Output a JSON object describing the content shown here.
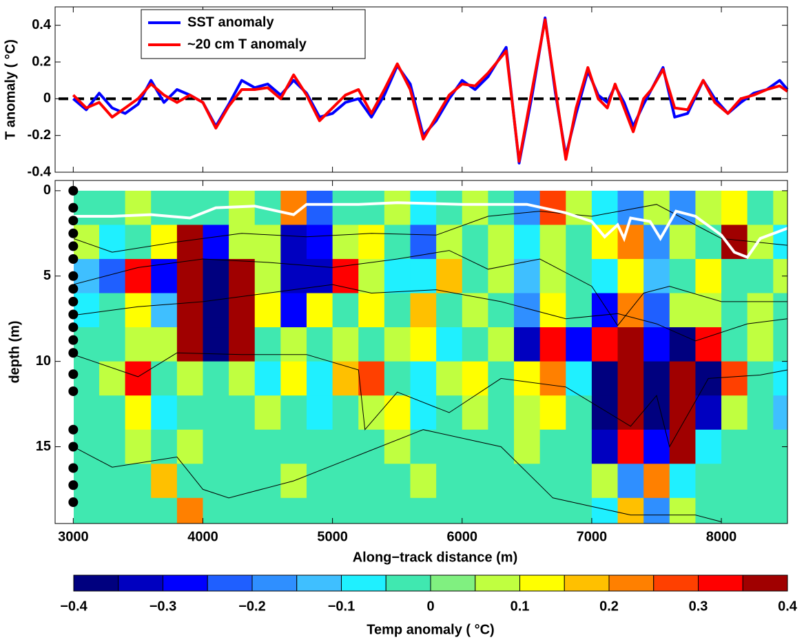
{
  "chart_data": [
    {
      "type": "line",
      "ylabel": "T anomaly ( °C)",
      "x": [
        3000,
        3100,
        3200,
        3300,
        3400,
        3500,
        3600,
        3700,
        3800,
        3900,
        4000,
        4100,
        4200,
        4300,
        4400,
        4500,
        4600,
        4700,
        4800,
        4900,
        5000,
        5100,
        5200,
        5300,
        5400,
        5500,
        5600,
        5700,
        5800,
        5900,
        6000,
        6100,
        6200,
        6340,
        6440,
        6540,
        6640,
        6720,
        6800,
        6880,
        6970,
        7050,
        7120,
        7180,
        7250,
        7320,
        7400,
        7460,
        7550,
        7640,
        7740,
        7860,
        7950,
        8050,
        8150,
        8250,
        8350,
        8450,
        8510
      ],
      "series": [
        {
          "name": "SST anomaly",
          "color": "#0000ff",
          "values": [
            0.0,
            -0.06,
            0.03,
            -0.05,
            -0.08,
            -0.03,
            0.1,
            -0.02,
            0.05,
            0.02,
            -0.02,
            -0.15,
            -0.03,
            0.1,
            0.06,
            0.08,
            0.02,
            0.1,
            0.03,
            -0.1,
            -0.08,
            -0.02,
            0.0,
            -0.1,
            0.02,
            0.18,
            0.08,
            -0.2,
            -0.12,
            0.0,
            0.1,
            0.05,
            0.12,
            0.28,
            -0.35,
            0.02,
            0.44,
            0.03,
            -0.31,
            -0.08,
            0.15,
            0.02,
            -0.02,
            0.07,
            -0.02,
            -0.15,
            -0.03,
            0.05,
            0.17,
            -0.1,
            -0.08,
            0.1,
            0.0,
            -0.08,
            -0.02,
            0.03,
            0.05,
            0.1,
            0.05
          ]
        },
        {
          "name": "~20 cm T anomaly",
          "color": "#ff0000",
          "values": [
            0.02,
            -0.05,
            -0.02,
            -0.1,
            -0.05,
            0.0,
            0.08,
            0.02,
            -0.02,
            0.02,
            -0.02,
            -0.16,
            -0.04,
            0.05,
            0.05,
            0.06,
            0.0,
            0.13,
            0.02,
            -0.12,
            -0.05,
            0.02,
            0.05,
            -0.08,
            0.05,
            0.19,
            0.05,
            -0.22,
            -0.1,
            0.02,
            0.08,
            0.07,
            0.14,
            0.26,
            -0.34,
            0.05,
            0.43,
            0.05,
            -0.33,
            -0.05,
            0.17,
            0.0,
            -0.05,
            0.08,
            -0.05,
            -0.18,
            0.0,
            0.05,
            0.16,
            -0.05,
            -0.06,
            0.1,
            -0.02,
            -0.08,
            0.0,
            0.02,
            0.05,
            0.07,
            0.04
          ]
        }
      ],
      "hline": 0,
      "xlim": [
        2860,
        8510
      ],
      "xticks": [
        3000,
        4000,
        5000,
        6000,
        7000,
        8000
      ],
      "ylim": [
        -0.4,
        0.5
      ],
      "yticks": [
        -0.4,
        -0.2,
        0,
        0.2,
        0.4
      ]
    },
    {
      "type": "heatmap",
      "xlabel": "Along−track distance (m)",
      "ylabel": "depth (m)",
      "x": [
        3100,
        3300,
        3500,
        3700,
        3900,
        4100,
        4300,
        4500,
        4700,
        4900,
        5100,
        5300,
        5500,
        5700,
        5900,
        6100,
        6300,
        6500,
        6700,
        6900,
        7100,
        7300,
        7500,
        7700,
        7900,
        8100,
        8300,
        8500
      ],
      "depths": [
        1,
        3,
        5,
        7,
        9,
        11,
        13,
        15,
        17,
        19
      ],
      "values": [
        [
          -0.02,
          -0.02,
          0.05,
          -0.02,
          -0.05,
          -0.02,
          0.05,
          -0.02,
          0.2,
          -0.25,
          -0.05,
          -0.02,
          0.05,
          -0.1,
          -0.02,
          0.05,
          -0.02,
          -0.2,
          0.25,
          0.05,
          -0.1,
          -0.2,
          0.05,
          -0.2,
          0.05,
          0.1,
          -0.02,
          0.05
        ],
        [
          0.05,
          -0.1,
          -0.02,
          0.1,
          0.35,
          -0.3,
          0.05,
          0.05,
          -0.35,
          -0.3,
          0.05,
          0.1,
          -0.02,
          -0.25,
          0.05,
          -0.02,
          0.05,
          -0.1,
          0.05,
          -0.05,
          0.1,
          0.2,
          -0.2,
          0.05,
          -0.05,
          0.35,
          0.05,
          -0.1
        ],
        [
          -0.15,
          -0.25,
          0.3,
          -0.3,
          0.4,
          -0.4,
          0.4,
          0.05,
          -0.35,
          -0.35,
          0.3,
          0.05,
          -0.1,
          -0.1,
          0.15,
          -0.05,
          0.05,
          -0.15,
          0.05,
          -0.02,
          -0.1,
          0.1,
          -0.15,
          -0.02,
          0.1,
          -0.05,
          -0.02,
          0.05
        ],
        [
          -0.1,
          -0.05,
          0.1,
          -0.15,
          0.4,
          -0.4,
          0.4,
          0.1,
          -0.3,
          0.1,
          -0.02,
          0.1,
          -0.05,
          0.15,
          -0.02,
          0.05,
          -0.02,
          -0.2,
          0.1,
          -0.02,
          -0.3,
          0.2,
          -0.25,
          0.05,
          0.05,
          -0.05,
          0.05,
          -0.02
        ],
        [
          -0.02,
          -0.05,
          0.05,
          0.05,
          0.4,
          -0.4,
          0.35,
          -0.05,
          0.05,
          -0.05,
          0.05,
          -0.02,
          0.05,
          0.1,
          -0.1,
          -0.02,
          0.05,
          -0.35,
          0.3,
          -0.3,
          0.3,
          0.4,
          -0.3,
          -0.4,
          0.3,
          -0.05,
          0.05,
          -0.02
        ],
        [
          -0.05,
          0.05,
          0.3,
          -0.02,
          0.05,
          -0.05,
          0.05,
          -0.1,
          0.1,
          -0.1,
          0.15,
          0.25,
          -0.05,
          -0.1,
          0.05,
          0.1,
          -0.02,
          0.1,
          0.2,
          -0.1,
          -0.4,
          0.4,
          -0.4,
          0.4,
          -0.4,
          0.25,
          -0.02,
          -0.1
        ],
        [
          -0.02,
          -0.05,
          0.1,
          -0.1,
          -0.02,
          -0.05,
          -0.02,
          0.05,
          -0.02,
          -0.1,
          -0.05,
          0.05,
          0.1,
          -0.1,
          -0.02,
          0.05,
          -0.05,
          0.05,
          0.1,
          -0.02,
          -0.4,
          0.35,
          -0.4,
          0.4,
          -0.35,
          0.05,
          -0.02,
          -0.15
        ],
        [
          -0.02,
          -0.05,
          0.05,
          -0.05,
          0.05,
          -0.02,
          -0.05,
          -0.02,
          -0.05,
          -0.02,
          -0.05,
          -0.02,
          0.05,
          -0.02,
          -0.05,
          -0.02,
          -0.02,
          0.05,
          -0.02,
          -0.05,
          -0.35,
          0.3,
          -0.3,
          0.35,
          -0.1,
          -0.02,
          -0.05,
          -0.02
        ],
        [
          -0.05,
          -0.02,
          -0.05,
          0.15,
          -0.05,
          -0.02,
          -0.05,
          -0.02,
          0.05,
          -0.02,
          -0.05,
          -0.02,
          -0.02,
          0.05,
          -0.05,
          -0.02,
          -0.02,
          -0.05,
          -0.02,
          -0.02,
          0.05,
          -0.2,
          0.2,
          -0.1,
          -0.02,
          -0.05,
          -0.02,
          -0.02
        ],
        [
          -0.02,
          -0.05,
          -0.02,
          -0.02,
          0.2,
          -0.02,
          -0.02,
          -0.02,
          -0.05,
          -0.02,
          -0.02,
          -0.05,
          -0.02,
          -0.02,
          -0.02,
          -0.02,
          -0.05,
          -0.02,
          -0.02,
          -0.02,
          -0.1,
          0.15,
          -0.2,
          0.05,
          -0.02,
          -0.02,
          -0.05,
          -0.02
        ]
      ],
      "contours": [
        {
          "x": [
            3000,
            3300,
            3800,
            4300,
            4800,
            5300,
            5800,
            6200,
            6600,
            7000,
            7500,
            8000,
            8510
          ],
          "depth": [
            2.8,
            3.6,
            3.0,
            2.5,
            2.7,
            2.5,
            2.6,
            1.5,
            1.2,
            1.5,
            0.8,
            2.8,
            3.2
          ]
        },
        {
          "x": [
            3000,
            3500,
            4000,
            4500,
            5000,
            5500,
            5900,
            6200,
            6600,
            7000,
            7200,
            7400,
            7600,
            8000,
            8510
          ],
          "depth": [
            5.5,
            4.5,
            4.0,
            4.2,
            4.5,
            4.0,
            3.5,
            4.6,
            4.0,
            5.6,
            7.9,
            6.0,
            5.6,
            6.5,
            6.5
          ]
        },
        {
          "x": [
            3000,
            3500,
            4000,
            4500,
            5000,
            5300,
            5800,
            6300,
            6800,
            7200,
            7500,
            7800,
            8200,
            8510
          ],
          "depth": [
            7.3,
            6.8,
            6.5,
            6.0,
            5.5,
            6.0,
            5.8,
            6.5,
            7.5,
            7.2,
            7.8,
            8.8,
            7.8,
            7.5
          ]
        },
        {
          "x": [
            3000,
            3500,
            3800,
            4300,
            4800,
            5200,
            5250,
            5500,
            5900,
            6300,
            6800,
            7300,
            7500,
            7600,
            7900,
            8300,
            8510
          ],
          "depth": [
            9.6,
            10.9,
            9.5,
            9.6,
            9.6,
            10.5,
            14.0,
            11.8,
            13.0,
            11.0,
            11.5,
            13.8,
            12.0,
            15.0,
            11.0,
            10.8,
            10.5
          ]
        },
        {
          "x": [
            3000,
            3300,
            3800,
            4000,
            4200,
            4700,
            5200,
            5700,
            6300,
            6700,
            7000,
            7300,
            7800,
            8000
          ],
          "depth": [
            15.0,
            16.2,
            15.6,
            17.5,
            18.0,
            17.0,
            15.5,
            14.0,
            15.0,
            18.0,
            18.5,
            19.0,
            19.0,
            19.4
          ]
        }
      ],
      "white_line": {
        "x": [
          3000,
          3300,
          3600,
          3900,
          4100,
          4400,
          4700,
          4800,
          5200,
          5500,
          6000,
          6500,
          6800,
          7000,
          7100,
          7200,
          7250,
          7300,
          7450,
          7530,
          7650,
          7800,
          8000,
          8100,
          8200,
          8300,
          8510
        ],
        "depth": [
          1.5,
          1.5,
          1.4,
          1.6,
          1.0,
          0.9,
          1.4,
          0.8,
          0.8,
          0.7,
          0.8,
          0.8,
          1.3,
          1.8,
          2.7,
          2.0,
          2.8,
          1.6,
          1.8,
          2.8,
          1.2,
          1.5,
          2.6,
          3.6,
          3.9,
          2.8,
          2.2
        ]
      },
      "sensor_depths": [
        0,
        1,
        1.75,
        2.5,
        3.25,
        4,
        5,
        5.75,
        6.5,
        7.25,
        8,
        8.75,
        9.5,
        10.75,
        11.75,
        14,
        15,
        16.25,
        17.25,
        18.25
      ],
      "xlim": [
        2860,
        8510
      ],
      "xticks": [
        3000,
        4000,
        5000,
        6000,
        7000,
        8000
      ],
      "ylim": [
        -0.6,
        19.5
      ],
      "yticks": [
        0,
        5,
        10,
        15
      ],
      "y_reversed": true
    },
    {
      "type": "colorbar",
      "label": "Temp anomaly ( °C)",
      "levels": [
        -0.4,
        -0.35,
        -0.3,
        -0.25,
        -0.2,
        -0.15,
        -0.1,
        -0.05,
        0,
        0.05,
        0.1,
        0.15,
        0.2,
        0.25,
        0.3,
        0.35,
        0.4
      ],
      "colors": [
        "#00007f",
        "#0000c0",
        "#0000ff",
        "#1f5fff",
        "#2f8fff",
        "#3fbfff",
        "#1ff0ff",
        "#40e8b0",
        "#80f080",
        "#c0ff40",
        "#ffff00",
        "#ffc000",
        "#ff8000",
        "#ff4000",
        "#ff0000",
        "#a00000"
      ],
      "xlim": [
        -0.4,
        0.4
      ],
      "xticks": [
        {
          "value": -0.4,
          "label": "−0.4"
        },
        {
          "value": -0.3,
          "label": "−0.3"
        },
        {
          "value": -0.2,
          "label": "−0.2"
        },
        {
          "value": -0.1,
          "label": "−0.1"
        },
        0,
        0.1,
        0.2,
        0.3,
        0.4
      ]
    }
  ]
}
